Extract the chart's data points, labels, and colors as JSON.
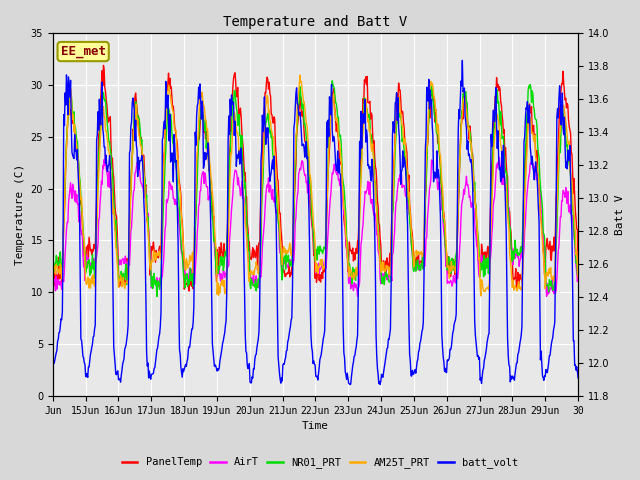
{
  "title": "Temperature and Batt V",
  "xlabel": "Time",
  "ylabel_left": "Temperature (C)",
  "ylabel_right": "Batt V",
  "annotation": "EE_met",
  "xlim": [
    0,
    16
  ],
  "ylim_left": [
    0,
    35
  ],
  "ylim_right": [
    11.8,
    14.0
  ],
  "xtick_labels": [
    "Jun",
    "15Jun",
    "16Jun",
    "17Jun",
    "18Jun",
    "19Jun",
    "20Jun",
    "21Jun",
    "22Jun",
    "23Jun",
    "24Jun",
    "25Jun",
    "26Jun",
    "27Jun",
    "28Jun",
    "29Jun",
    "30"
  ],
  "xtick_positions": [
    0,
    1,
    2,
    3,
    4,
    5,
    6,
    7,
    8,
    9,
    10,
    11,
    12,
    13,
    14,
    15,
    16
  ],
  "yticks_left": [
    0,
    5,
    10,
    15,
    20,
    25,
    30,
    35
  ],
  "yticks_right": [
    11.8,
    12.0,
    12.2,
    12.4,
    12.6,
    12.8,
    13.0,
    13.2,
    13.4,
    13.6,
    13.8,
    14.0
  ],
  "series": {
    "PanelTemp": {
      "color": "#ff0000",
      "lw": 1.0
    },
    "AirT": {
      "color": "#ff00ff",
      "lw": 1.0
    },
    "NR01_PRT": {
      "color": "#00dd00",
      "lw": 1.0
    },
    "AM25T_PRT": {
      "color": "#ffaa00",
      "lw": 1.0
    },
    "batt_volt": {
      "color": "#0000ff",
      "lw": 1.0
    }
  },
  "legend_colors": [
    "#ff0000",
    "#ff00ff",
    "#00dd00",
    "#ffaa00",
    "#0000ff"
  ],
  "legend_labels": [
    "PanelTemp",
    "AirT",
    "NR01_PRT",
    "AM25T_PRT",
    "batt_volt"
  ],
  "bg_color": "#d8d8d8",
  "plot_bg": "#e8e8e8",
  "grid_color": "#ffffff",
  "annotation_bg": "#ffff99",
  "annotation_edge": "#999900",
  "annotation_text": "#880000"
}
